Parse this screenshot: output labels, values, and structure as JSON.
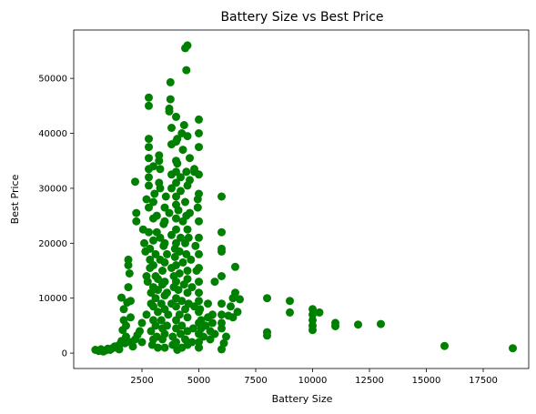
{
  "chart_data": {
    "type": "scatter",
    "title": "Battery Size vs Best Price",
    "xlabel": "Battery Size",
    "ylabel": "Best Price",
    "xlim": [
      -500,
      19500
    ],
    "ylim": [
      -2800,
      58800
    ],
    "x_ticks": [
      2500,
      5000,
      7500,
      10000,
      12500,
      15000,
      17500
    ],
    "x_tick_labels": [
      "2500",
      "5000",
      "7500",
      "10000",
      "12500",
      "15000",
      "17500"
    ],
    "y_ticks": [
      0,
      10000,
      20000,
      30000,
      40000,
      50000
    ],
    "y_tick_labels": [
      "0",
      "10000",
      "20000",
      "30000",
      "40000",
      "50000"
    ],
    "grid": false,
    "legend": "none",
    "marker_color": "#008000",
    "points": [
      [
        450,
        600
      ],
      [
        600,
        400
      ],
      [
        700,
        700
      ],
      [
        800,
        300
      ],
      [
        900,
        500
      ],
      [
        1000,
        800
      ],
      [
        1100,
        600
      ],
      [
        1200,
        900
      ],
      [
        1300,
        1200
      ],
      [
        1400,
        1000
      ],
      [
        1500,
        1500
      ],
      [
        1500,
        700
      ],
      [
        1600,
        10100
      ],
      [
        1600,
        2200
      ],
      [
        1650,
        4200
      ],
      [
        1700,
        6000
      ],
      [
        1700,
        8000
      ],
      [
        1750,
        1800
      ],
      [
        1800,
        3000
      ],
      [
        1800,
        5000
      ],
      [
        1850,
        9200
      ],
      [
        1900,
        12000
      ],
      [
        1900,
        16000
      ],
      [
        1900,
        17000
      ],
      [
        1950,
        14500
      ],
      [
        2000,
        2000
      ],
      [
        2000,
        6500
      ],
      [
        2000,
        9500
      ],
      [
        2100,
        1200
      ],
      [
        2200,
        2500
      ],
      [
        2200,
        31200
      ],
      [
        2250,
        24000
      ],
      [
        2250,
        25500
      ],
      [
        2300,
        3300
      ],
      [
        2400,
        4000
      ],
      [
        2500,
        2000
      ],
      [
        2500,
        5500
      ],
      [
        2550,
        22500
      ],
      [
        2600,
        20000
      ],
      [
        2650,
        18500
      ],
      [
        2700,
        7000
      ],
      [
        2700,
        14000
      ],
      [
        2700,
        28000
      ],
      [
        2750,
        13000
      ],
      [
        2800,
        46500
      ],
      [
        2800,
        45000
      ],
      [
        2800,
        39000
      ],
      [
        2800,
        37500
      ],
      [
        2800,
        35500
      ],
      [
        2800,
        33500
      ],
      [
        2800,
        32000
      ],
      [
        2800,
        30500
      ],
      [
        2800,
        26500
      ],
      [
        2800,
        22000
      ],
      [
        2850,
        19000
      ],
      [
        2850,
        17000
      ],
      [
        2850,
        15500
      ],
      [
        2900,
        11000
      ],
      [
        2900,
        9000
      ],
      [
        2900,
        4000
      ],
      [
        2950,
        1500
      ],
      [
        3000,
        2500
      ],
      [
        3000,
        6000
      ],
      [
        3000,
        8500
      ],
      [
        3000,
        12000
      ],
      [
        3000,
        16000
      ],
      [
        3000,
        20500
      ],
      [
        3000,
        24500
      ],
      [
        3000,
        27500
      ],
      [
        3000,
        34000
      ],
      [
        3050,
        29000
      ],
      [
        3100,
        18000
      ],
      [
        3100,
        14000
      ],
      [
        3100,
        10000
      ],
      [
        3100,
        5000
      ],
      [
        3150,
        3000
      ],
      [
        3150,
        22000
      ],
      [
        3150,
        25000
      ],
      [
        3200,
        13500
      ],
      [
        3200,
        11500
      ],
      [
        3200,
        7500
      ],
      [
        3200,
        1000
      ],
      [
        3250,
        31000
      ],
      [
        3250,
        35000
      ],
      [
        3250,
        36000
      ],
      [
        3300,
        33500
      ],
      [
        3300,
        30000
      ],
      [
        3300,
        21000
      ],
      [
        3300,
        17000
      ],
      [
        3350,
        9000
      ],
      [
        3350,
        6000
      ],
      [
        3400,
        2500
      ],
      [
        3400,
        4500
      ],
      [
        3400,
        12500
      ],
      [
        3400,
        15000
      ],
      [
        3450,
        19500
      ],
      [
        3450,
        23500
      ],
      [
        3500,
        1000
      ],
      [
        3500,
        3500
      ],
      [
        3500,
        8000
      ],
      [
        3500,
        10500
      ],
      [
        3500,
        13000
      ],
      [
        3500,
        16500
      ],
      [
        3500,
        20000
      ],
      [
        3500,
        24000
      ],
      [
        3500,
        26500
      ],
      [
        3550,
        28500
      ],
      [
        3600,
        5000
      ],
      [
        3600,
        11000
      ],
      [
        3600,
        18000
      ],
      [
        3650,
        7000
      ],
      [
        3700,
        25500
      ],
      [
        3700,
        44000
      ],
      [
        3700,
        44500
      ],
      [
        3750,
        46200
      ],
      [
        3750,
        49300
      ],
      [
        3800,
        41000
      ],
      [
        3800,
        38000
      ],
      [
        3800,
        32500
      ],
      [
        3800,
        30000
      ],
      [
        3800,
        21500
      ],
      [
        3800,
        15500
      ],
      [
        3800,
        9000
      ],
      [
        3850,
        3000
      ],
      [
        3850,
        1500
      ],
      [
        3900,
        12000
      ],
      [
        3900,
        14000
      ],
      [
        3950,
        17500
      ],
      [
        3950,
        19000
      ],
      [
        4000,
        2000
      ],
      [
        4000,
        4500
      ],
      [
        4000,
        6000
      ],
      [
        4000,
        8500
      ],
      [
        4000,
        10000
      ],
      [
        4000,
        13000
      ],
      [
        4000,
        16000
      ],
      [
        4000,
        20000
      ],
      [
        4000,
        22500
      ],
      [
        4000,
        24500
      ],
      [
        4000,
        27000
      ],
      [
        4000,
        28500
      ],
      [
        4000,
        31000
      ],
      [
        4000,
        33000
      ],
      [
        4000,
        35000
      ],
      [
        4000,
        38500
      ],
      [
        4000,
        43000
      ],
      [
        4050,
        34500
      ],
      [
        4050,
        39000
      ],
      [
        4050,
        600
      ],
      [
        4100,
        11500
      ],
      [
        4100,
        26000
      ],
      [
        4150,
        18500
      ],
      [
        4150,
        14500
      ],
      [
        4150,
        7000
      ],
      [
        4200,
        3500
      ],
      [
        4200,
        21000
      ],
      [
        4200,
        29500
      ],
      [
        4200,
        32000
      ],
      [
        4250,
        1000
      ],
      [
        4250,
        5000
      ],
      [
        4250,
        9500
      ],
      [
        4250,
        40000
      ],
      [
        4300,
        37000
      ],
      [
        4300,
        24000
      ],
      [
        4300,
        16500
      ],
      [
        4350,
        12500
      ],
      [
        4350,
        41500
      ],
      [
        4400,
        55500
      ],
      [
        4400,
        27500
      ],
      [
        4400,
        20000
      ],
      [
        4400,
        8000
      ],
      [
        4400,
        2500
      ],
      [
        4450,
        51500
      ],
      [
        4450,
        33000
      ],
      [
        4450,
        25000
      ],
      [
        4450,
        18000
      ],
      [
        4500,
        56000
      ],
      [
        4500,
        39500
      ],
      [
        4500,
        30500
      ],
      [
        4500,
        22500
      ],
      [
        4500,
        15000
      ],
      [
        4500,
        13500
      ],
      [
        4500,
        11000
      ],
      [
        4500,
        6500
      ],
      [
        4500,
        4000
      ],
      [
        4500,
        1500
      ],
      [
        4550,
        21000
      ],
      [
        4550,
        9000
      ],
      [
        4600,
        31500
      ],
      [
        4600,
        35500
      ],
      [
        4600,
        25500
      ],
      [
        4650,
        17000
      ],
      [
        4700,
        2000
      ],
      [
        4700,
        12000
      ],
      [
        4750,
        4500
      ],
      [
        4800,
        8500
      ],
      [
        4800,
        33000
      ],
      [
        4800,
        33500
      ],
      [
        4850,
        19500
      ],
      [
        4900,
        15000
      ],
      [
        4950,
        26500
      ],
      [
        4950,
        28000
      ],
      [
        5000,
        42500
      ],
      [
        5000,
        40000
      ],
      [
        5000,
        37500
      ],
      [
        5000,
        32500
      ],
      [
        5000,
        29000
      ],
      [
        5000,
        24000
      ],
      [
        5000,
        21000
      ],
      [
        5000,
        18000
      ],
      [
        5000,
        15500
      ],
      [
        5000,
        13000
      ],
      [
        5000,
        11000
      ],
      [
        5000,
        9500
      ],
      [
        5000,
        7500
      ],
      [
        5000,
        5500
      ],
      [
        5000,
        3500
      ],
      [
        5000,
        2000
      ],
      [
        5000,
        1000
      ],
      [
        5050,
        8000
      ],
      [
        5100,
        6000
      ],
      [
        5100,
        4500
      ],
      [
        5200,
        3000
      ],
      [
        5300,
        5000
      ],
      [
        5400,
        6500
      ],
      [
        5400,
        9000
      ],
      [
        5500,
        2500
      ],
      [
        5500,
        4000
      ],
      [
        5600,
        5500
      ],
      [
        5600,
        7000
      ],
      [
        5700,
        13000
      ],
      [
        5700,
        3500
      ],
      [
        6000,
        28500
      ],
      [
        6000,
        22000
      ],
      [
        6000,
        19000
      ],
      [
        6000,
        18500
      ],
      [
        6000,
        14000
      ],
      [
        6000,
        9000
      ],
      [
        6000,
        7000
      ],
      [
        6000,
        5500
      ],
      [
        6000,
        4500
      ],
      [
        6000,
        700
      ],
      [
        6100,
        1800
      ],
      [
        6200,
        3000
      ],
      [
        6300,
        6800
      ],
      [
        6400,
        8500
      ],
      [
        6500,
        6500
      ],
      [
        6500,
        10000
      ],
      [
        6600,
        11000
      ],
      [
        6600,
        15700
      ],
      [
        6700,
        7500
      ],
      [
        6800,
        9800
      ],
      [
        8000,
        10000
      ],
      [
        8000,
        3800
      ],
      [
        8000,
        3200
      ],
      [
        9000,
        9500
      ],
      [
        9000,
        7400
      ],
      [
        10000,
        8000
      ],
      [
        10000,
        7000
      ],
      [
        10000,
        6000
      ],
      [
        10000,
        5000
      ],
      [
        10000,
        4200
      ],
      [
        10300,
        7400
      ],
      [
        11000,
        5500
      ],
      [
        11000,
        4900
      ],
      [
        12000,
        5200
      ],
      [
        13000,
        5300
      ],
      [
        15800,
        1300
      ],
      [
        18800,
        900
      ]
    ]
  }
}
